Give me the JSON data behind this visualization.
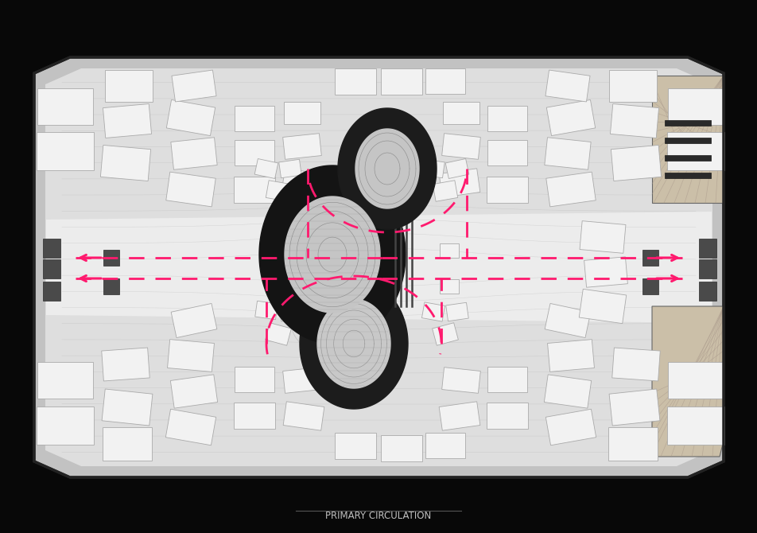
{
  "background_color": "#080808",
  "plan_mid_gray": "#c2c2c2",
  "plan_light_gray": "#dedede",
  "pod_dark": "#1e1e1e",
  "pod_inner": "#c5c5c5",
  "arrow_color": "#ff1a6e",
  "title_text": "PRIMARY CIRCULATION",
  "title_color": "#c0c0c0",
  "title_fontsize": 8.5,
  "white_box": "#f2f2f2",
  "box_edge": "#aaaaaa",
  "dark_block": "#4a4a4a",
  "room_fill": "#cbbfa8",
  "line_color": "#a8978a",
  "border_color": "#2e2e2e",
  "inner_border": "#666666",
  "flow_line_color": "#b0b0b0",
  "bx0": 48,
  "bx1": 905,
  "by0": 70,
  "by1": 598
}
